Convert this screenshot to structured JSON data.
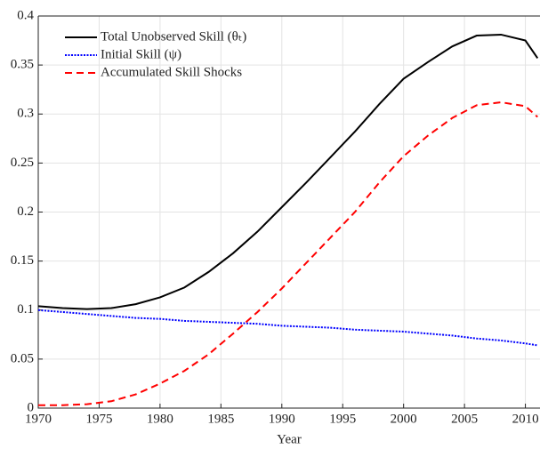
{
  "chart_data": {
    "type": "line",
    "x_label": "Year",
    "x": [
      1970,
      1972,
      1974,
      1976,
      1978,
      1980,
      1982,
      1984,
      1986,
      1988,
      1990,
      1992,
      1994,
      1996,
      1998,
      2000,
      2002,
      2004,
      2006,
      2008,
      2010,
      2011
    ],
    "series": [
      {
        "name": "Total Unobserved Skill (θₜ)",
        "color": "#000000",
        "dash": "solid",
        "values": [
          0.104,
          0.102,
          0.101,
          0.102,
          0.106,
          0.113,
          0.123,
          0.139,
          0.158,
          0.18,
          0.205,
          0.23,
          0.256,
          0.282,
          0.31,
          0.336,
          0.353,
          0.369,
          0.38,
          0.381,
          0.375,
          0.357
        ]
      },
      {
        "name": "Initial Skill (ψ)",
        "color": "#0000ff",
        "dash": "dotted",
        "values": [
          0.1,
          0.098,
          0.096,
          0.094,
          0.092,
          0.091,
          0.089,
          0.088,
          0.087,
          0.086,
          0.084,
          0.083,
          0.082,
          0.08,
          0.079,
          0.078,
          0.076,
          0.074,
          0.071,
          0.069,
          0.066,
          0.064
        ]
      },
      {
        "name": "Accumulated Skill Shocks",
        "color": "#ff0000",
        "dash": "dashed",
        "values": [
          0.003,
          0.003,
          0.004,
          0.007,
          0.014,
          0.025,
          0.038,
          0.055,
          0.076,
          0.098,
          0.122,
          0.148,
          0.174,
          0.2,
          0.23,
          0.257,
          0.278,
          0.296,
          0.309,
          0.312,
          0.308,
          0.297
        ]
      }
    ],
    "xlim": [
      1970,
      2011.2
    ],
    "xticks": [
      1970,
      1975,
      1980,
      1985,
      1990,
      1995,
      2000,
      2005,
      2010
    ],
    "ylim": [
      0,
      0.4
    ],
    "yticks": [
      0,
      0.05,
      0.1,
      0.15,
      0.2,
      0.25,
      0.3,
      0.35,
      0.4
    ],
    "grid": true,
    "legend": "upper left"
  }
}
